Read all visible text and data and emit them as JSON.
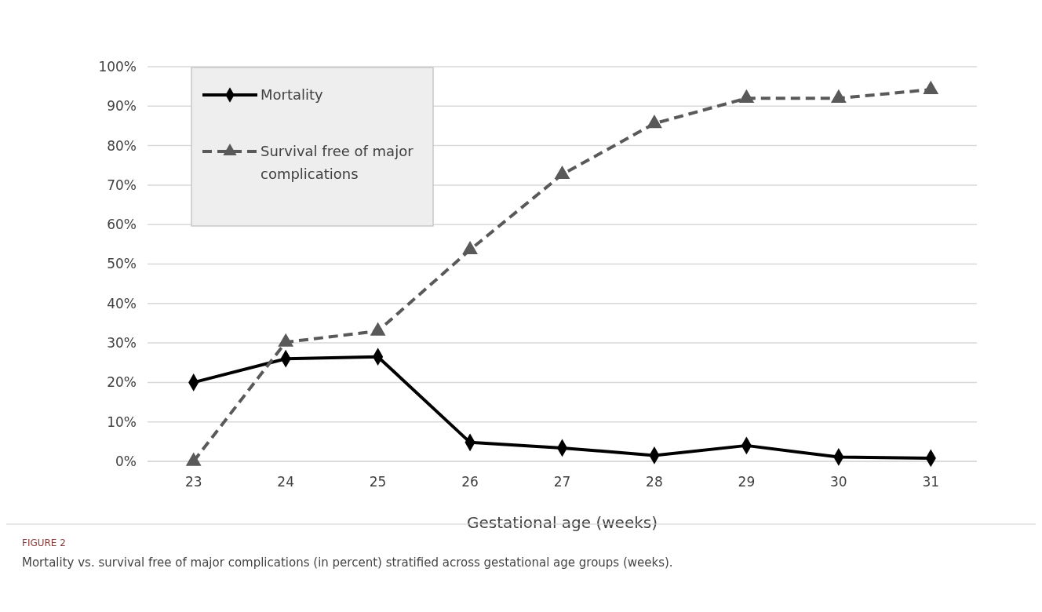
{
  "chart_data": {
    "type": "line",
    "xlabel": "Gestational age (weeks)",
    "categories": [
      "23",
      "24",
      "25",
      "26",
      "27",
      "28",
      "29",
      "30",
      "31"
    ],
    "series": [
      {
        "name": "Mortality",
        "color": "#000000",
        "marker": "diamond",
        "line_style": "solid",
        "values": [
          20,
          26,
          26.5,
          4.8,
          3.4,
          1.5,
          4,
          1.1,
          0.8
        ]
      },
      {
        "name": "Survival free of major complications",
        "color": "#595959",
        "marker": "triangle",
        "line_style": "dashed",
        "values": [
          0,
          30.2,
          33,
          53.6,
          72.7,
          85.6,
          92,
          92,
          94.2
        ]
      }
    ],
    "ylim": [
      0,
      100
    ],
    "yticks": [
      {
        "value": 0,
        "label": "0%"
      },
      {
        "value": 10,
        "label": "10%"
      },
      {
        "value": 20,
        "label": "20%"
      },
      {
        "value": 30,
        "label": "30%"
      },
      {
        "value": 40,
        "label": "40%"
      },
      {
        "value": 50,
        "label": "50%"
      },
      {
        "value": 60,
        "label": "60%"
      },
      {
        "value": 70,
        "label": "70%"
      },
      {
        "value": 80,
        "label": "80%"
      },
      {
        "value": 90,
        "label": "90%"
      },
      {
        "value": 100,
        "label": "100%"
      }
    ],
    "grid": "y",
    "legend": "top left",
    "annotations": [
      "FIGURE 2",
      "Mortality vs. survival free of major complications (in percent) stratified across gestational age groups (weeks)."
    ]
  }
}
